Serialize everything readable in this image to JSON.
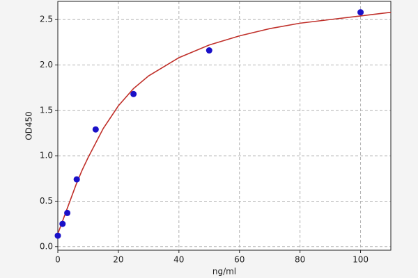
{
  "chart_data": {
    "type": "scatter",
    "x_label": "ng/ml",
    "y_label": "OD450",
    "series": [
      {
        "type": "scatter",
        "color": "#1a10c8",
        "x": [
          0,
          1.56,
          3.125,
          6.25,
          12.5,
          25,
          50,
          100
        ],
        "values": [
          0.12,
          0.25,
          0.37,
          0.74,
          1.29,
          1.68,
          2.16,
          2.58
        ]
      },
      {
        "type": "line",
        "color": "#c0302a",
        "x": [
          0,
          2,
          4,
          6,
          8,
          10,
          15,
          20,
          25,
          30,
          40,
          50,
          60,
          70,
          80,
          90,
          100,
          110
        ],
        "values": [
          0.14,
          0.32,
          0.5,
          0.68,
          0.84,
          0.98,
          1.3,
          1.55,
          1.74,
          1.88,
          2.08,
          2.22,
          2.32,
          2.4,
          2.46,
          2.5,
          2.54,
          2.58
        ]
      }
    ],
    "xlim": [
      0,
      110
    ],
    "ylim": [
      -0.04,
      2.7
    ],
    "xticks": [
      0,
      20,
      40,
      60,
      80,
      100
    ],
    "yticks": [
      {
        "value": 0,
        "label": "0.0"
      },
      0.5,
      {
        "value": 1,
        "label": "1.0"
      },
      1.5,
      {
        "value": 2,
        "label": "2.0"
      },
      2.5
    ],
    "grid": true
  }
}
